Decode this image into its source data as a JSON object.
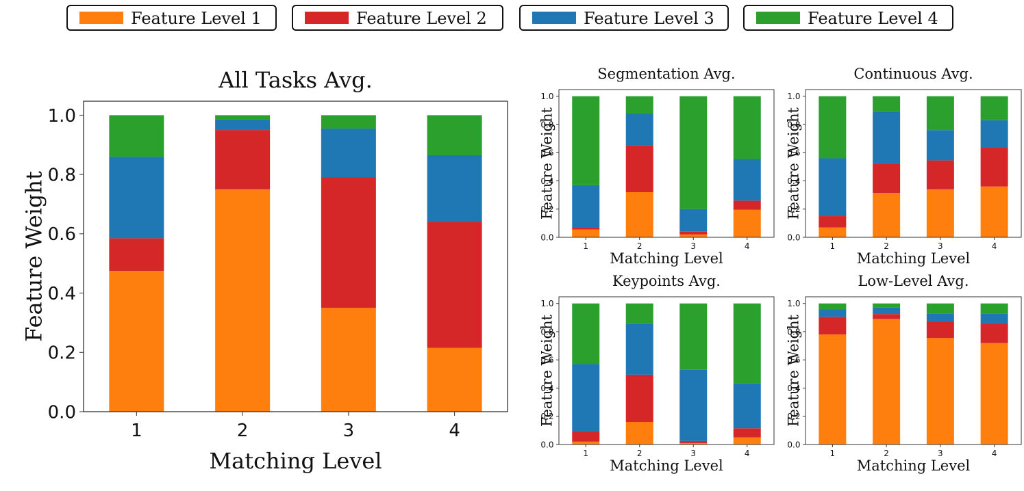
{
  "legend": {
    "items": [
      {
        "label": "Feature Level 1",
        "color": "#ff7f0e"
      },
      {
        "label": "Feature Level 2",
        "color": "#d62728"
      },
      {
        "label": "Feature Level 3",
        "color": "#1f77b4"
      },
      {
        "label": "Feature Level 4",
        "color": "#2ca02c"
      }
    ]
  },
  "chart_data": [
    {
      "type": "bar",
      "stacked": true,
      "title": "All Tasks Avg.",
      "xlabel": "Matching Level",
      "ylabel": "Feature Weight",
      "categories": [
        "1",
        "2",
        "3",
        "4"
      ],
      "ylim": [
        0,
        1.0
      ],
      "yticks": [
        "0.0",
        "0.2",
        "0.4",
        "0.6",
        "0.8",
        "1.0"
      ],
      "series": [
        {
          "name": "Feature Level 1",
          "values": [
            0.475,
            0.75,
            0.35,
            0.215
          ]
        },
        {
          "name": "Feature Level 2",
          "values": [
            0.11,
            0.2,
            0.44,
            0.425
          ]
        },
        {
          "name": "Feature Level 3",
          "values": [
            0.275,
            0.035,
            0.165,
            0.225
          ]
        },
        {
          "name": "Feature Level 4",
          "values": [
            0.14,
            0.015,
            0.045,
            0.135
          ]
        }
      ]
    },
    {
      "type": "bar",
      "stacked": true,
      "title": "Segmentation Avg.",
      "xlabel": "Matching Level",
      "ylabel": "Feature Weight",
      "categories": [
        "1",
        "2",
        "3",
        "4"
      ],
      "ylim": [
        0,
        1.0
      ],
      "yticks": [
        "0.0",
        "0.2",
        "0.4",
        "0.6",
        "0.8",
        "1.0"
      ],
      "series": [
        {
          "name": "Feature Level 1",
          "values": [
            0.055,
            0.32,
            0.02,
            0.195
          ]
        },
        {
          "name": "Feature Level 2",
          "values": [
            0.015,
            0.33,
            0.02,
            0.065
          ]
        },
        {
          "name": "Feature Level 3",
          "values": [
            0.3,
            0.225,
            0.16,
            0.295
          ]
        },
        {
          "name": "Feature Level 4",
          "values": [
            0.63,
            0.125,
            0.8,
            0.445
          ]
        }
      ]
    },
    {
      "type": "bar",
      "stacked": true,
      "title": "Continuous Avg.",
      "xlabel": "Matching Level",
      "ylabel": "Feature Weight",
      "categories": [
        "1",
        "2",
        "3",
        "4"
      ],
      "ylim": [
        0,
        1.0
      ],
      "yticks": [
        "0.0",
        "0.2",
        "0.4",
        "0.6",
        "0.8",
        "1.0"
      ],
      "series": [
        {
          "name": "Feature Level 1",
          "values": [
            0.07,
            0.315,
            0.34,
            0.36
          ]
        },
        {
          "name": "Feature Level 2",
          "values": [
            0.08,
            0.21,
            0.205,
            0.275
          ]
        },
        {
          "name": "Feature Level 3",
          "values": [
            0.41,
            0.365,
            0.215,
            0.195
          ]
        },
        {
          "name": "Feature Level 4",
          "values": [
            0.44,
            0.11,
            0.24,
            0.17
          ]
        }
      ]
    },
    {
      "type": "bar",
      "stacked": true,
      "title": "Keypoints Avg.",
      "xlabel": "Matching Level",
      "ylabel": "Feature Weight",
      "categories": [
        "1",
        "2",
        "3",
        "4"
      ],
      "ylim": [
        0,
        1.0
      ],
      "yticks": [
        "0.0",
        "0.2",
        "0.4",
        "0.6",
        "0.8",
        "1.0"
      ],
      "series": [
        {
          "name": "Feature Level 1",
          "values": [
            0.02,
            0.16,
            0.01,
            0.05
          ]
        },
        {
          "name": "Feature Level 2",
          "values": [
            0.075,
            0.335,
            0.015,
            0.065
          ]
        },
        {
          "name": "Feature Level 3",
          "values": [
            0.475,
            0.36,
            0.505,
            0.32
          ]
        },
        {
          "name": "Feature Level 4",
          "values": [
            0.43,
            0.145,
            0.47,
            0.565
          ]
        }
      ]
    },
    {
      "type": "bar",
      "stacked": true,
      "title": "Low-Level Avg.",
      "xlabel": "Matching Level",
      "ylabel": "Feature Weight",
      "categories": [
        "1",
        "2",
        "3",
        "4"
      ],
      "ylim": [
        0,
        1.0
      ],
      "yticks": [
        "0.0",
        "0.2",
        "0.4",
        "0.6",
        "0.8",
        "1.0"
      ],
      "series": [
        {
          "name": "Feature Level 1",
          "values": [
            0.78,
            0.89,
            0.755,
            0.72
          ]
        },
        {
          "name": "Feature Level 2",
          "values": [
            0.125,
            0.035,
            0.115,
            0.14
          ]
        },
        {
          "name": "Feature Level 3",
          "values": [
            0.05,
            0.045,
            0.06,
            0.07
          ]
        },
        {
          "name": "Feature Level 4",
          "values": [
            0.045,
            0.03,
            0.07,
            0.07
          ]
        }
      ]
    }
  ]
}
